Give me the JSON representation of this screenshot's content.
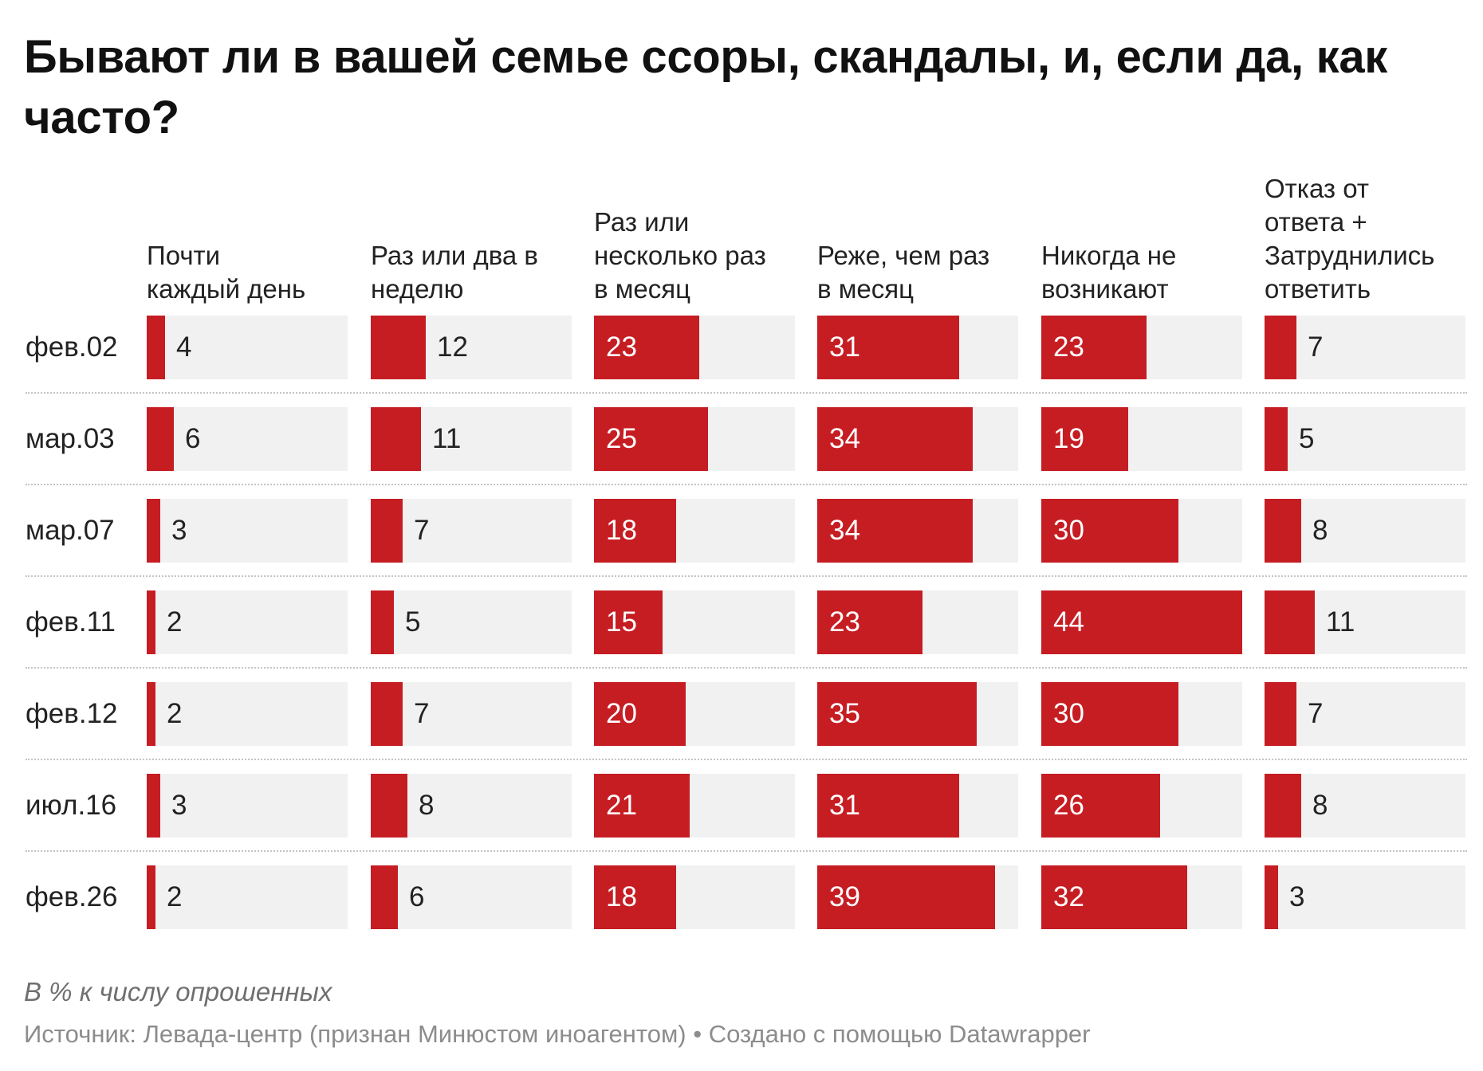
{
  "title": "Бывают ли в вашей семье ссоры, скандалы, и, если да, как часто?",
  "note": "В % к числу опрошенных",
  "source": "Источник: Левада-центр (признан Минюстом иноагентом) • Создано с помощью Datawrapper",
  "colors": {
    "bar": "#c61d23",
    "track": "#f1f1f1",
    "label_inside": "#ffffff",
    "label_outside": "#222222"
  },
  "chart_data": {
    "type": "bar",
    "title": "Бывают ли в вашей семье ссоры, скандалы, и, если да, как часто?",
    "categories": [
      "фев.02",
      "мар.03",
      "мар.07",
      "фев.11",
      "фев.12",
      "июл.16",
      "фев.26"
    ],
    "xlim": [
      0,
      44
    ],
    "series": [
      {
        "name": "Почти\nкаждый день",
        "values": [
          4,
          6,
          3,
          2,
          2,
          3,
          2
        ]
      },
      {
        "name": "Раз или два в\nнеделю",
        "values": [
          12,
          11,
          7,
          5,
          7,
          8,
          6
        ]
      },
      {
        "name": "Раз или\nнесколько раз\nв месяц",
        "values": [
          23,
          25,
          18,
          15,
          20,
          21,
          18
        ]
      },
      {
        "name": "Реже, чем раз\nв месяц",
        "values": [
          31,
          34,
          34,
          23,
          35,
          31,
          39
        ]
      },
      {
        "name": "Никогда не\nвозникают",
        "values": [
          23,
          19,
          30,
          44,
          30,
          26,
          32
        ]
      },
      {
        "name": "Отказ от\nответа +\nЗатруднились\nответить",
        "values": [
          7,
          5,
          8,
          11,
          7,
          8,
          3
        ]
      }
    ],
    "grid": false,
    "legend": "none"
  }
}
